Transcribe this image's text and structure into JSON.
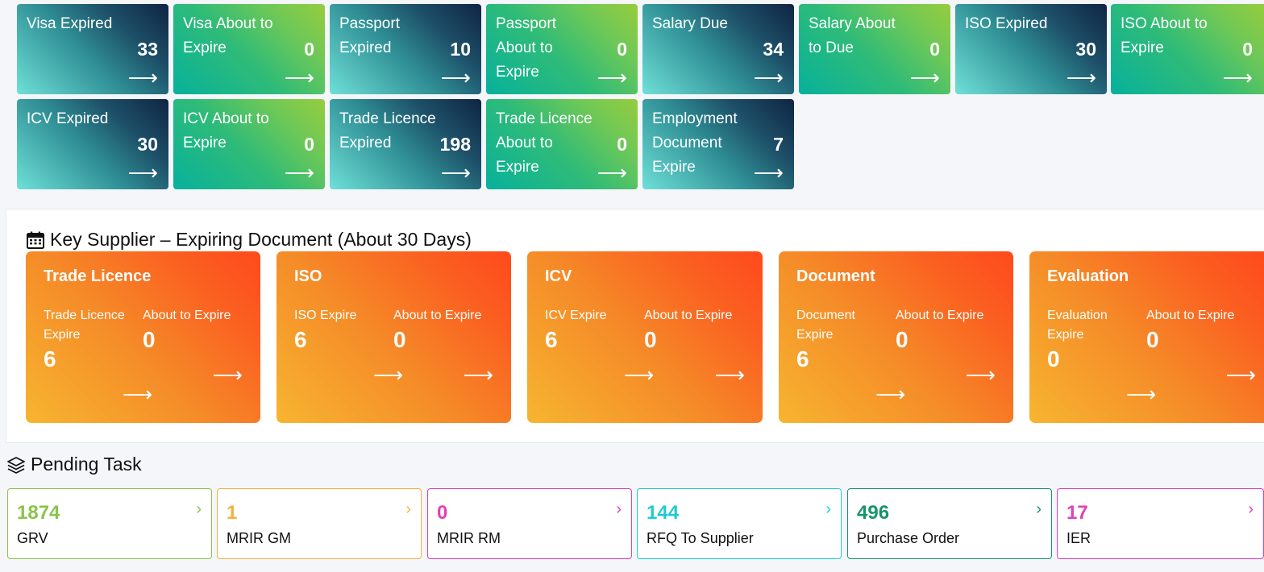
{
  "top_tiles": [
    {
      "label": "Visa Expired",
      "count": "33",
      "style": "dark"
    },
    {
      "label": "Visa About to Expire",
      "count": "0",
      "style": "green"
    },
    {
      "label": "Passport Expired",
      "count": "10",
      "style": "dark"
    },
    {
      "label": "Passport About to Expire",
      "count": "0",
      "style": "green"
    },
    {
      "label": "Salary Due",
      "count": "34",
      "style": "dark"
    },
    {
      "label": "Salary About to Due",
      "count": "0",
      "style": "green"
    },
    {
      "label": "ISO Expired",
      "count": "30",
      "style": "dark"
    },
    {
      "label": "ISO About to Expire",
      "count": "0",
      "style": "green"
    },
    {
      "label": "ICV Expired",
      "count": "30",
      "style": "dark"
    },
    {
      "label": "ICV About to Expire",
      "count": "0",
      "style": "green"
    },
    {
      "label": "Trade Licence Expired",
      "count": "198",
      "style": "dark"
    },
    {
      "label": "Trade Licence About to Expire",
      "count": "0",
      "style": "green"
    },
    {
      "label": "Employment Document Expire",
      "count": "7",
      "style": "dark"
    }
  ],
  "arrow": "⟶",
  "supplier_section": {
    "title": "Key Supplier – Expiring Document (About 30 Days)",
    "cards": [
      {
        "title": "Trade Licence",
        "expire_label": "Trade Licence Expire",
        "expire_value": "6",
        "about_label": "About to Expire",
        "about_value": "0"
      },
      {
        "title": "ISO",
        "expire_label": "ISO Expire",
        "expire_value": "6",
        "about_label": "About to Expire",
        "about_value": "0"
      },
      {
        "title": "ICV",
        "expire_label": "ICV Expire",
        "expire_value": "6",
        "about_label": "About to Expire",
        "about_value": "0"
      },
      {
        "title": "Document",
        "expire_label": "Document Expire",
        "expire_value": "6",
        "about_label": "About to Expire",
        "about_value": "0"
      },
      {
        "title": "Evaluation",
        "expire_label": "Evaluation Expire",
        "expire_value": "0",
        "about_label": "About to Expire",
        "about_value": "0"
      }
    ]
  },
  "pending_section": {
    "title": "Pending Task",
    "cards": [
      {
        "count": "1874",
        "label": "GRV",
        "color": "#8bc34a"
      },
      {
        "count": "1",
        "label": "MRIR GM",
        "color": "#f5b041"
      },
      {
        "count": "0",
        "label": "MRIR RM",
        "color": "#e43fb7"
      },
      {
        "count": "144",
        "label": "RFQ To Supplier",
        "color": "#1fcad4"
      },
      {
        "count": "496",
        "label": "Purchase Order",
        "color": "#17946c"
      },
      {
        "count": "17",
        "label": "IER",
        "color": "#e43fb7"
      }
    ]
  }
}
